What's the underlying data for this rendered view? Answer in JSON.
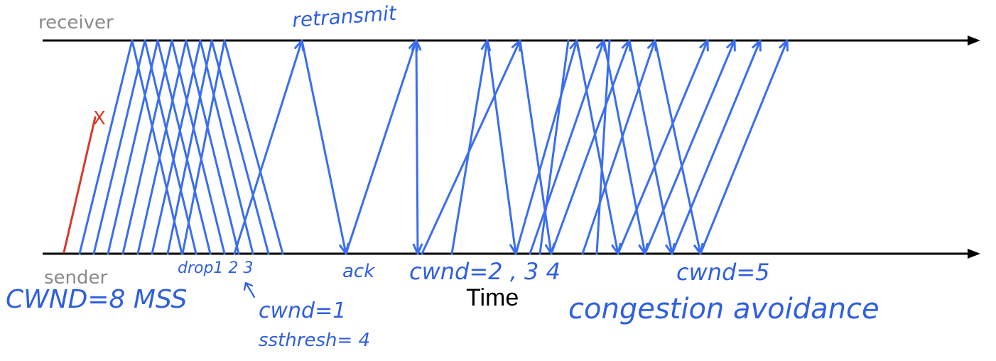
{
  "labels": {
    "receiver": "receiver",
    "sender": "sender",
    "time": "Time"
  },
  "annotations": {
    "retransmit": "retransmit",
    "drop": "drop1 2 3",
    "ack": "ack",
    "cwnd_steps": "cwnd=2 , 3 4",
    "cwnd5": "cwnd=5",
    "cwnd_initial": "CWND=8 MSS",
    "cwnd1": "cwnd=1",
    "ssthresh": "ssthresh= 4",
    "congestion": "congestion avoidance",
    "lost_marker": "X"
  },
  "colors": {
    "axis": "#000000",
    "segments": "#3a6ef0",
    "lost_segment": "#d63a2a",
    "handwriting": "#2f5fe0",
    "axis_labels": "#8a8a8a"
  }
}
